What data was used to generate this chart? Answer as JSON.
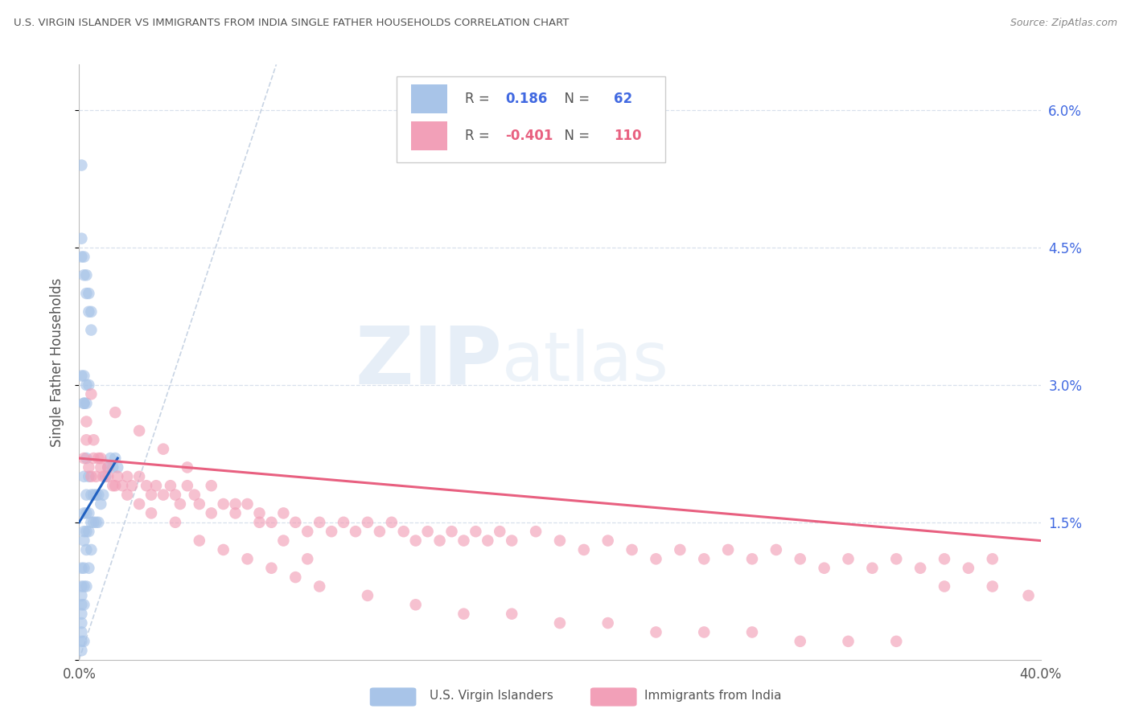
{
  "title": "U.S. VIRGIN ISLANDER VS IMMIGRANTS FROM INDIA SINGLE FATHER HOUSEHOLDS CORRELATION CHART",
  "source": "Source: ZipAtlas.com",
  "ylabel": "Single Father Households",
  "xlim": [
    0.0,
    0.4
  ],
  "ylim": [
    0.0,
    0.065
  ],
  "blue_R": 0.186,
  "blue_N": 62,
  "pink_R": -0.401,
  "pink_N": 110,
  "blue_color": "#a8c4e8",
  "pink_color": "#f2a0b8",
  "blue_line_color": "#2060c0",
  "pink_line_color": "#e86080",
  "ref_line_color": "#c8d4e4",
  "legend_label_blue": "U.S. Virgin Islanders",
  "legend_label_pink": "Immigrants from India",
  "watermark_zip": "ZIP",
  "watermark_atlas": "atlas",
  "title_color": "#555555",
  "right_tick_color": "#4169e1",
  "grid_color": "#d8e0ec",
  "blue_x": [
    0.001,
    0.001,
    0.001,
    0.001,
    0.001,
    0.001,
    0.001,
    0.001,
    0.001,
    0.001,
    0.002,
    0.002,
    0.002,
    0.002,
    0.002,
    0.002,
    0.002,
    0.002,
    0.002,
    0.003,
    0.003,
    0.003,
    0.003,
    0.003,
    0.003,
    0.004,
    0.004,
    0.004,
    0.004,
    0.005,
    0.005,
    0.005,
    0.006,
    0.006,
    0.007,
    0.007,
    0.008,
    0.008,
    0.009,
    0.01,
    0.011,
    0.012,
    0.013,
    0.014,
    0.015,
    0.016,
    0.001,
    0.001,
    0.002,
    0.002,
    0.003,
    0.003,
    0.004,
    0.004,
    0.005,
    0.005,
    0.001,
    0.002,
    0.003,
    0.004,
    0.002,
    0.003
  ],
  "blue_y": [
    0.054,
    0.01,
    0.008,
    0.007,
    0.006,
    0.005,
    0.004,
    0.003,
    0.002,
    0.001,
    0.028,
    0.02,
    0.016,
    0.014,
    0.013,
    0.01,
    0.008,
    0.006,
    0.002,
    0.022,
    0.018,
    0.016,
    0.014,
    0.012,
    0.008,
    0.02,
    0.016,
    0.014,
    0.01,
    0.018,
    0.015,
    0.012,
    0.018,
    0.015,
    0.018,
    0.015,
    0.018,
    0.015,
    0.017,
    0.018,
    0.02,
    0.021,
    0.022,
    0.021,
    0.022,
    0.021,
    0.046,
    0.044,
    0.044,
    0.042,
    0.042,
    0.04,
    0.04,
    0.038,
    0.038,
    0.036,
    0.031,
    0.031,
    0.03,
    0.03,
    0.028,
    0.028
  ],
  "pink_x": [
    0.002,
    0.003,
    0.004,
    0.005,
    0.006,
    0.007,
    0.008,
    0.009,
    0.01,
    0.012,
    0.014,
    0.016,
    0.018,
    0.02,
    0.022,
    0.025,
    0.028,
    0.03,
    0.032,
    0.035,
    0.038,
    0.04,
    0.042,
    0.045,
    0.048,
    0.05,
    0.055,
    0.06,
    0.065,
    0.07,
    0.075,
    0.08,
    0.085,
    0.09,
    0.095,
    0.1,
    0.105,
    0.11,
    0.115,
    0.12,
    0.125,
    0.13,
    0.135,
    0.14,
    0.145,
    0.15,
    0.155,
    0.16,
    0.165,
    0.17,
    0.175,
    0.18,
    0.19,
    0.2,
    0.21,
    0.22,
    0.23,
    0.24,
    0.25,
    0.26,
    0.27,
    0.28,
    0.29,
    0.3,
    0.31,
    0.32,
    0.33,
    0.34,
    0.35,
    0.36,
    0.37,
    0.38,
    0.003,
    0.006,
    0.009,
    0.012,
    0.015,
    0.02,
    0.025,
    0.03,
    0.04,
    0.05,
    0.06,
    0.07,
    0.08,
    0.09,
    0.1,
    0.12,
    0.14,
    0.16,
    0.18,
    0.2,
    0.22,
    0.24,
    0.26,
    0.28,
    0.3,
    0.32,
    0.34,
    0.36,
    0.38,
    0.395,
    0.005,
    0.015,
    0.025,
    0.035,
    0.045,
    0.055,
    0.065,
    0.075,
    0.085,
    0.095
  ],
  "pink_y": [
    0.022,
    0.024,
    0.021,
    0.02,
    0.022,
    0.02,
    0.022,
    0.021,
    0.02,
    0.02,
    0.019,
    0.02,
    0.019,
    0.02,
    0.019,
    0.02,
    0.019,
    0.018,
    0.019,
    0.018,
    0.019,
    0.018,
    0.017,
    0.019,
    0.018,
    0.017,
    0.016,
    0.017,
    0.016,
    0.017,
    0.016,
    0.015,
    0.016,
    0.015,
    0.014,
    0.015,
    0.014,
    0.015,
    0.014,
    0.015,
    0.014,
    0.015,
    0.014,
    0.013,
    0.014,
    0.013,
    0.014,
    0.013,
    0.014,
    0.013,
    0.014,
    0.013,
    0.014,
    0.013,
    0.012,
    0.013,
    0.012,
    0.011,
    0.012,
    0.011,
    0.012,
    0.011,
    0.012,
    0.011,
    0.01,
    0.011,
    0.01,
    0.011,
    0.01,
    0.011,
    0.01,
    0.011,
    0.026,
    0.024,
    0.022,
    0.021,
    0.019,
    0.018,
    0.017,
    0.016,
    0.015,
    0.013,
    0.012,
    0.011,
    0.01,
    0.009,
    0.008,
    0.007,
    0.006,
    0.005,
    0.005,
    0.004,
    0.004,
    0.003,
    0.003,
    0.003,
    0.002,
    0.002,
    0.002,
    0.008,
    0.008,
    0.007,
    0.029,
    0.027,
    0.025,
    0.023,
    0.021,
    0.019,
    0.017,
    0.015,
    0.013,
    0.011
  ],
  "pink_line_x0": 0.0,
  "pink_line_x1": 0.4,
  "pink_line_y0": 0.022,
  "pink_line_y1": 0.013,
  "blue_line_x0": 0.0,
  "blue_line_x1": 0.016,
  "blue_line_y0": 0.015,
  "blue_line_y1": 0.022,
  "ref_line_x0": 0.0,
  "ref_line_x1": 0.082,
  "ref_line_y0": 0.0,
  "ref_line_y1": 0.065
}
